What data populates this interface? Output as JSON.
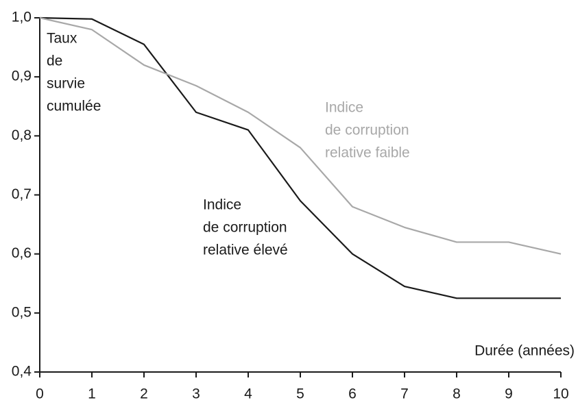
{
  "chart_data": {
    "type": "line",
    "ylabel": [
      "Taux",
      "de",
      "survie",
      "cumulée"
    ],
    "xlabel": "Durée (années)",
    "x": [
      0,
      1,
      2,
      3,
      4,
      5,
      6,
      7,
      8,
      9,
      10
    ],
    "series": [
      {
        "name": [
          "Indice",
          "de corruption",
          "relative élevé"
        ],
        "color": "#1a1a1a",
        "values": [
          1.0,
          0.998,
          0.955,
          0.84,
          0.81,
          0.69,
          0.6,
          0.545,
          0.525,
          0.525,
          0.525
        ]
      },
      {
        "name": [
          "Indice",
          "de corruption",
          "relative faible"
        ],
        "color": "#a8a8a8",
        "values": [
          1.0,
          0.98,
          0.92,
          0.885,
          0.84,
          0.78,
          0.68,
          0.645,
          0.62,
          0.62,
          0.6
        ]
      }
    ],
    "xlim": [
      0,
      10
    ],
    "xticks": [
      0,
      1,
      2,
      3,
      4,
      5,
      6,
      7,
      8,
      9,
      10
    ],
    "ylim": [
      0.4,
      1.0
    ],
    "yticks": [
      {
        "value": 0.4,
        "label": "0,4"
      },
      {
        "value": 0.5,
        "label": "0,5"
      },
      {
        "value": 0.6,
        "label": "0,6"
      },
      {
        "value": 0.7,
        "label": "0,7"
      },
      {
        "value": 0.8,
        "label": "0,8"
      },
      {
        "value": 0.9,
        "label": "0,9"
      },
      {
        "value": 1.0,
        "label": "1,0"
      }
    ]
  }
}
